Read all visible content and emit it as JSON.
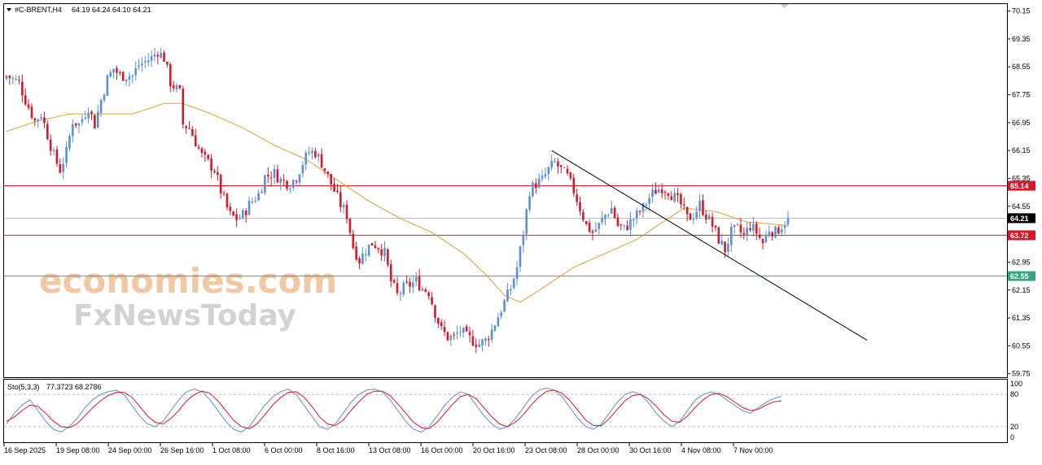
{
  "header": {
    "symbol_label": "#C-BRENT,H4",
    "ohlc_label": "64.19 64.24 64.10 64.21"
  },
  "watermark": {
    "line1": "economies.com",
    "line2": "FxNewsToday"
  },
  "colors": {
    "bull": "#5b8fd6",
    "bear": "#d8182a",
    "ma": "#e0a030",
    "trendline": "#000000",
    "resistance": "#d8182a",
    "support": "#35a87a",
    "current": "#bdbdbd",
    "stoch_main": "#5b8fd6",
    "stoch_signal": "#d8182a"
  },
  "chart_data": [
    {
      "type": "candlestick",
      "symbol": "#C-BRENT",
      "timeframe": "H4",
      "ylim": [
        59.65,
        70.35
      ],
      "y_ticks": [
        "70.15",
        "69.35",
        "68.55",
        "67.75",
        "66.95",
        "66.15",
        "65.35",
        "64.55",
        "63.75",
        "62.95",
        "62.15",
        "61.35",
        "60.55",
        "59.75"
      ],
      "x_tick_labels": [
        "16 Sep 2025",
        "19 Sep 08:00",
        "24 Sep 00:00",
        "26 Sep 16:00",
        "1 Oct 08:00",
        "6 Oct 00:00",
        "8 Oct 16:00",
        "13 Oct 08:00",
        "16 Oct 00:00",
        "20 Oct 16:00",
        "23 Oct 08:00",
        "28 Oct 00:00",
        "30 Oct 16:00",
        "4 Nov 08:00",
        "7 Nov 00:00"
      ],
      "price_levels": [
        {
          "value": 65.14,
          "label": "65.14",
          "kind": "resistance"
        },
        {
          "value": 64.21,
          "label": "64.21",
          "kind": "current"
        },
        {
          "value": 63.72,
          "label": "63.72",
          "kind": "resistance"
        },
        {
          "value": 62.55,
          "label": "62.55",
          "kind": "support"
        }
      ],
      "trendline": {
        "from": [
          173,
          66.15
        ],
        "to": [
          219,
          63.65
        ]
      },
      "close_path": [
        [
          0,
          68.3
        ],
        [
          4,
          68.1
        ],
        [
          6,
          67.6
        ],
        [
          9,
          67.0
        ],
        [
          11,
          67.2
        ],
        [
          13,
          66.6
        ],
        [
          15,
          66.0
        ],
        [
          17,
          65.6
        ],
        [
          19,
          66.1
        ],
        [
          21,
          67.0
        ],
        [
          23,
          66.9
        ],
        [
          26,
          67.4
        ],
        [
          28,
          66.9
        ],
        [
          30,
          67.6
        ],
        [
          32,
          68.2
        ],
        [
          34,
          68.5
        ],
        [
          36,
          68.3
        ],
        [
          40,
          68.3
        ],
        [
          42,
          68.6
        ],
        [
          46,
          68.8
        ],
        [
          48,
          69.0
        ],
        [
          50,
          68.8
        ],
        [
          52,
          68.1
        ],
        [
          55,
          67.8
        ],
        [
          56,
          66.9
        ],
        [
          58,
          66.8
        ],
        [
          60,
          66.4
        ],
        [
          62,
          66.0
        ],
        [
          64,
          65.8
        ],
        [
          66,
          65.6
        ],
        [
          68,
          65.0
        ],
        [
          70,
          64.5
        ],
        [
          71,
          64.3
        ],
        [
          73,
          64.2
        ],
        [
          75,
          64.3
        ],
        [
          77,
          64.6
        ],
        [
          80,
          64.9
        ],
        [
          82,
          65.4
        ],
        [
          85,
          65.5
        ],
        [
          87,
          65.3
        ],
        [
          90,
          65.2
        ],
        [
          92,
          65.4
        ],
        [
          94,
          65.8
        ],
        [
          96,
          66.1
        ],
        [
          98,
          66.1
        ],
        [
          100,
          65.8
        ],
        [
          102,
          65.4
        ],
        [
          104,
          65.0
        ],
        [
          106,
          64.6
        ],
        [
          108,
          64.3
        ],
        [
          110,
          63.4
        ],
        [
          112,
          63.0
        ],
        [
          114,
          63.3
        ],
        [
          116,
          63.5
        ],
        [
          118,
          63.4
        ],
        [
          120,
          63.2
        ],
        [
          122,
          62.4
        ],
        [
          124,
          62.0
        ],
        [
          126,
          62.2
        ],
        [
          128,
          62.3
        ],
        [
          130,
          62.4
        ],
        [
          132,
          62.2
        ],
        [
          134,
          62.1
        ],
        [
          136,
          61.5
        ],
        [
          138,
          61.0
        ],
        [
          140,
          60.8
        ],
        [
          142,
          60.8
        ],
        [
          144,
          61.0
        ],
        [
          146,
          60.8
        ],
        [
          148,
          60.7
        ],
        [
          150,
          60.6
        ],
        [
          152,
          60.7
        ],
        [
          154,
          61.0
        ],
        [
          156,
          61.4
        ],
        [
          158,
          61.8
        ],
        [
          160,
          62.2
        ],
        [
          162,
          62.8
        ],
        [
          164,
          63.8
        ],
        [
          166,
          65.0
        ],
        [
          168,
          65.2
        ],
        [
          170,
          65.3
        ],
        [
          172,
          65.6
        ],
        [
          174,
          65.8
        ],
        [
          176,
          65.6
        ],
        [
          178,
          65.4
        ],
        [
          180,
          65.0
        ],
        [
          182,
          64.5
        ],
        [
          184,
          64.0
        ],
        [
          186,
          63.8
        ],
        [
          188,
          64.0
        ],
        [
          190,
          64.3
        ],
        [
          192,
          64.5
        ],
        [
          194,
          64.0
        ],
        [
          196,
          63.9
        ],
        [
          198,
          64.1
        ],
        [
          200,
          64.3
        ],
        [
          202,
          64.5
        ],
        [
          204,
          64.8
        ],
        [
          206,
          65.0
        ],
        [
          208,
          65.1
        ],
        [
          210,
          65.0
        ],
        [
          212,
          64.8
        ],
        [
          214,
          64.6
        ],
        [
          216,
          64.2
        ],
        [
          218,
          64.3
        ],
        [
          220,
          64.6
        ],
        [
          222,
          64.3
        ],
        [
          224,
          64.0
        ],
        [
          226,
          63.6
        ],
        [
          228,
          63.3
        ],
        [
          230,
          63.8
        ],
        [
          232,
          63.9
        ],
        [
          234,
          63.7
        ],
        [
          236,
          64.0
        ],
        [
          238,
          63.8
        ],
        [
          240,
          63.5
        ],
        [
          242,
          63.9
        ],
        [
          244,
          63.8
        ],
        [
          246,
          64.0
        ],
        [
          248,
          64.21
        ]
      ],
      "ma_path": [
        [
          0,
          66.7
        ],
        [
          10,
          67.0
        ],
        [
          20,
          67.2
        ],
        [
          30,
          67.2
        ],
        [
          40,
          67.2
        ],
        [
          50,
          67.5
        ],
        [
          56,
          67.5
        ],
        [
          65,
          67.2
        ],
        [
          75,
          66.8
        ],
        [
          85,
          66.3
        ],
        [
          95,
          65.9
        ],
        [
          105,
          65.3
        ],
        [
          115,
          64.7
        ],
        [
          125,
          64.2
        ],
        [
          135,
          63.8
        ],
        [
          145,
          63.2
        ],
        [
          152,
          62.6
        ],
        [
          158,
          62.0
        ],
        [
          163,
          61.8
        ],
        [
          170,
          62.2
        ],
        [
          180,
          62.8
        ],
        [
          190,
          63.2
        ],
        [
          200,
          63.6
        ],
        [
          210,
          64.2
        ],
        [
          215,
          64.5
        ],
        [
          225,
          64.4
        ],
        [
          235,
          64.1
        ],
        [
          248,
          64.0
        ]
      ]
    },
    {
      "type": "line",
      "name": "Sto(5,3,3)",
      "label": "Sto(5,3,3)",
      "values_label": "77.3723 68.2786",
      "ylim": [
        0,
        100
      ],
      "levels": [
        20,
        80
      ],
      "y_ticks": [
        "100",
        "80",
        "20",
        "0"
      ],
      "series": [
        {
          "values": [
            25,
            45,
            60,
            70,
            50,
            30,
            15,
            10,
            20,
            35,
            55,
            70,
            80,
            85,
            88,
            80,
            60,
            40,
            25,
            20,
            30,
            50,
            70,
            85,
            90,
            85,
            70,
            50,
            30,
            15,
            10,
            20,
            40,
            60,
            75,
            85,
            90,
            80,
            60,
            40,
            20,
            15,
            25,
            45,
            65,
            80,
            88,
            90,
            85,
            70,
            50,
            30,
            15,
            10,
            20,
            40,
            60,
            75,
            85,
            80,
            60,
            40,
            25,
            15,
            20,
            35,
            55,
            75,
            88,
            92,
            88,
            75,
            55,
            35,
            20,
            15,
            25,
            45,
            65,
            80,
            85,
            80,
            65,
            45,
            30,
            20,
            30,
            50,
            70,
            80,
            85,
            80,
            70,
            60,
            50,
            45,
            55,
            65,
            72,
            77
          ]
        },
        {
          "values": [
            30,
            38,
            50,
            60,
            58,
            45,
            30,
            20,
            18,
            25,
            40,
            55,
            68,
            78,
            84,
            84,
            75,
            58,
            40,
            28,
            25,
            35,
            50,
            68,
            80,
            86,
            82,
            68,
            50,
            32,
            20,
            16,
            25,
            42,
            60,
            74,
            84,
            85,
            75,
            58,
            38,
            25,
            22,
            32,
            50,
            66,
            80,
            86,
            86,
            78,
            62,
            45,
            28,
            18,
            16,
            28,
            45,
            62,
            76,
            80,
            72,
            55,
            38,
            25,
            20,
            28,
            42,
            60,
            75,
            86,
            88,
            82,
            68,
            50,
            32,
            22,
            22,
            35,
            52,
            68,
            78,
            80,
            72,
            58,
            42,
            30,
            28,
            40,
            56,
            70,
            80,
            82,
            76,
            66,
            56,
            50,
            52,
            60,
            66,
            68
          ]
        }
      ]
    }
  ]
}
